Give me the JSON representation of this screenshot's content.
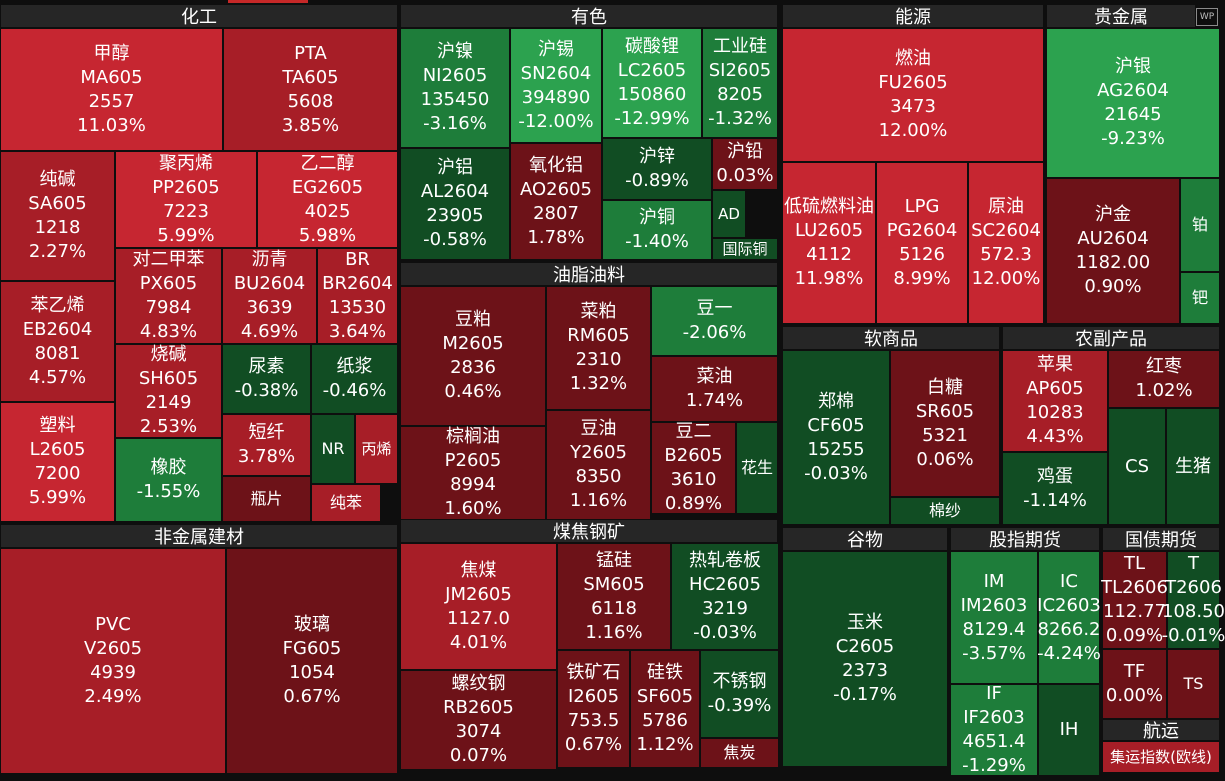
{
  "colors": {
    "up_strong": "#c62631",
    "up_medium": "#a71e27",
    "up_weak": "#6d1218",
    "down_strong": "#2ca24f",
    "down_medium": "#1e7d3a",
    "down_weak": "#114d23",
    "flat": "#3a3a3a",
    "header_bg": "#262626",
    "background": "#0e0e0e"
  },
  "logo_text": "WP",
  "chart_data": {
    "type": "treemap",
    "sectors": [
      {
        "name": "化工",
        "items": [
          {
            "name": "甲醇",
            "code": "MA605",
            "price": "2557",
            "change": "11.03%"
          },
          {
            "name": "PTA",
            "code": "TA605",
            "price": "5608",
            "change": "3.85%"
          },
          {
            "name": "纯碱",
            "code": "SA605",
            "price": "1218",
            "change": "2.27%"
          },
          {
            "name": "聚丙烯",
            "code": "PP2605",
            "price": "7223",
            "change": "5.99%"
          },
          {
            "name": "乙二醇",
            "code": "EG2605",
            "price": "4025",
            "change": "5.98%"
          },
          {
            "name": "对二甲苯",
            "code": "PX605",
            "price": "7984",
            "change": "4.83%"
          },
          {
            "name": "沥青",
            "code": "BU2604",
            "price": "3639",
            "change": "4.69%"
          },
          {
            "name": "BR",
            "code": "BR2604",
            "price": "13530",
            "change": "3.64%"
          },
          {
            "name": "苯乙烯",
            "code": "EB2604",
            "price": "8081",
            "change": "4.57%"
          },
          {
            "name": "烧碱",
            "code": "SH605",
            "price": "2149",
            "change": "2.53%"
          },
          {
            "name": "尿素",
            "code": "",
            "price": "",
            "change": "-0.38%"
          },
          {
            "name": "纸浆",
            "code": "",
            "price": "",
            "change": "-0.46%"
          },
          {
            "name": "塑料",
            "code": "L2605",
            "price": "7200",
            "change": "5.99%"
          },
          {
            "name": "橡胶",
            "code": "",
            "price": "",
            "change": "-1.55%"
          },
          {
            "name": "短纤",
            "code": "",
            "price": "",
            "change": "3.78%"
          },
          {
            "name": "NR",
            "code": "",
            "price": "",
            "change": ""
          },
          {
            "name": "丙烯",
            "code": "",
            "price": "",
            "change": ""
          },
          {
            "name": "瓶片",
            "code": "",
            "price": "",
            "change": ""
          },
          {
            "name": "纯苯",
            "code": "",
            "price": "",
            "change": ""
          }
        ]
      },
      {
        "name": "有色",
        "items": [
          {
            "name": "沪镍",
            "code": "NI2605",
            "price": "135450",
            "change": "-3.16%"
          },
          {
            "name": "沪锡",
            "code": "SN2604",
            "price": "394890",
            "change": "-12.00%"
          },
          {
            "name": "碳酸锂",
            "code": "LC2605",
            "price": "150860",
            "change": "-12.99%"
          },
          {
            "name": "工业硅",
            "code": "SI2605",
            "price": "8205",
            "change": "-1.32%"
          },
          {
            "name": "沪铝",
            "code": "AL2604",
            "price": "23905",
            "change": "-0.58%"
          },
          {
            "name": "氧化铝",
            "code": "AO2605",
            "price": "2807",
            "change": "1.78%"
          },
          {
            "name": "沪锌",
            "code": "",
            "price": "",
            "change": "-0.89%"
          },
          {
            "name": "沪铅",
            "code": "",
            "price": "",
            "change": "0.03%"
          },
          {
            "name": "沪铜",
            "code": "",
            "price": "",
            "change": "-1.40%"
          },
          {
            "name": "AD",
            "code": "",
            "price": "",
            "change": ""
          },
          {
            "name": "国际铜",
            "code": "",
            "price": "",
            "change": ""
          }
        ]
      },
      {
        "name": "能源",
        "items": [
          {
            "name": "燃油",
            "code": "FU2605",
            "price": "3473",
            "change": "12.00%"
          },
          {
            "name": "低硫燃料油",
            "code": "LU2605",
            "price": "4112",
            "change": "11.98%"
          },
          {
            "name": "LPG",
            "code": "PG2604",
            "price": "5126",
            "change": "8.99%"
          },
          {
            "name": "原油",
            "code": "SC2604",
            "price": "572.3",
            "change": "12.00%"
          }
        ]
      },
      {
        "name": "贵金属",
        "items": [
          {
            "name": "沪银",
            "code": "AG2604",
            "price": "21645",
            "change": "-9.23%"
          },
          {
            "name": "沪金",
            "code": "AU2604",
            "price": "1182.00",
            "change": "0.90%"
          },
          {
            "name": "铂",
            "code": "",
            "price": "",
            "change": ""
          },
          {
            "name": "钯",
            "code": "",
            "price": "",
            "change": ""
          }
        ]
      },
      {
        "name": "油脂油料",
        "items": [
          {
            "name": "豆粕",
            "code": "M2605",
            "price": "2836",
            "change": "0.46%"
          },
          {
            "name": "菜粕",
            "code": "RM605",
            "price": "2310",
            "change": "1.32%"
          },
          {
            "name": "豆一",
            "code": "",
            "price": "",
            "change": "-2.06%"
          },
          {
            "name": "菜油",
            "code": "",
            "price": "",
            "change": "1.74%"
          },
          {
            "name": "棕榈油",
            "code": "P2605",
            "price": "8994",
            "change": "1.60%"
          },
          {
            "name": "豆油",
            "code": "Y2605",
            "price": "8350",
            "change": "1.16%"
          },
          {
            "name": "豆二",
            "code": "B2605",
            "price": "3610",
            "change": "0.89%"
          },
          {
            "name": "花生",
            "code": "",
            "price": "",
            "change": ""
          }
        ]
      },
      {
        "name": "软商品",
        "items": [
          {
            "name": "郑棉",
            "code": "CF605",
            "price": "15255",
            "change": "-0.03%"
          },
          {
            "name": "白糖",
            "code": "SR605",
            "price": "5321",
            "change": "0.06%"
          },
          {
            "name": "棉纱",
            "code": "",
            "price": "",
            "change": ""
          }
        ]
      },
      {
        "name": "农副产品",
        "items": [
          {
            "name": "苹果",
            "code": "AP605",
            "price": "10283",
            "change": "4.43%"
          },
          {
            "name": "红枣",
            "code": "",
            "price": "",
            "change": "1.02%"
          },
          {
            "name": "鸡蛋",
            "code": "",
            "price": "",
            "change": "-1.14%"
          },
          {
            "name": "CS",
            "code": "",
            "price": "",
            "change": ""
          },
          {
            "name": "生猪",
            "code": "",
            "price": "",
            "change": ""
          }
        ]
      },
      {
        "name": "非金属建材",
        "items": [
          {
            "name": "PVC",
            "code": "V2605",
            "price": "4939",
            "change": "2.49%"
          },
          {
            "name": "玻璃",
            "code": "FG605",
            "price": "1054",
            "change": "0.67%"
          }
        ]
      },
      {
        "name": "煤焦钢矿",
        "items": [
          {
            "name": "焦煤",
            "code": "JM2605",
            "price": "1127.0",
            "change": "4.01%"
          },
          {
            "name": "锰硅",
            "code": "SM605",
            "price": "6118",
            "change": "1.16%"
          },
          {
            "name": "热轧卷板",
            "code": "HC2605",
            "price": "3219",
            "change": "-0.03%"
          },
          {
            "name": "螺纹钢",
            "code": "RB2605",
            "price": "3074",
            "change": "0.07%"
          },
          {
            "name": "铁矿石",
            "code": "I2605",
            "price": "753.5",
            "change": "0.67%"
          },
          {
            "name": "硅铁",
            "code": "SF605",
            "price": "5786",
            "change": "1.12%"
          },
          {
            "name": "不锈钢",
            "code": "",
            "price": "",
            "change": "-0.39%"
          },
          {
            "name": "焦炭",
            "code": "",
            "price": "",
            "change": ""
          }
        ]
      },
      {
        "name": "谷物",
        "items": [
          {
            "name": "玉米",
            "code": "C2605",
            "price": "2373",
            "change": "-0.17%"
          }
        ]
      },
      {
        "name": "股指期货",
        "items": [
          {
            "name": "IM",
            "code": "IM2603",
            "price": "8129.4",
            "change": "-3.57%"
          },
          {
            "name": "IC",
            "code": "IC2603",
            "price": "8266.2",
            "change": "-4.24%"
          },
          {
            "name": "IF",
            "code": "IF2603",
            "price": "4651.4",
            "change": "-1.29%"
          },
          {
            "name": "IH",
            "code": "",
            "price": "",
            "change": ""
          }
        ]
      },
      {
        "name": "国债期货",
        "items": [
          {
            "name": "TL",
            "code": "TL2606",
            "price": "112.77",
            "change": "0.09%"
          },
          {
            "name": "T",
            "code": "T2606",
            "price": "108.50",
            "change": "-0.01%"
          },
          {
            "name": "TF",
            "code": "",
            "price": "",
            "change": "0.00%"
          },
          {
            "name": "TS",
            "code": "",
            "price": "",
            "change": ""
          }
        ]
      },
      {
        "name": "航运",
        "items": [
          {
            "name": "集运指数(欧线)",
            "code": "",
            "price": "",
            "change": ""
          }
        ]
      }
    ]
  }
}
